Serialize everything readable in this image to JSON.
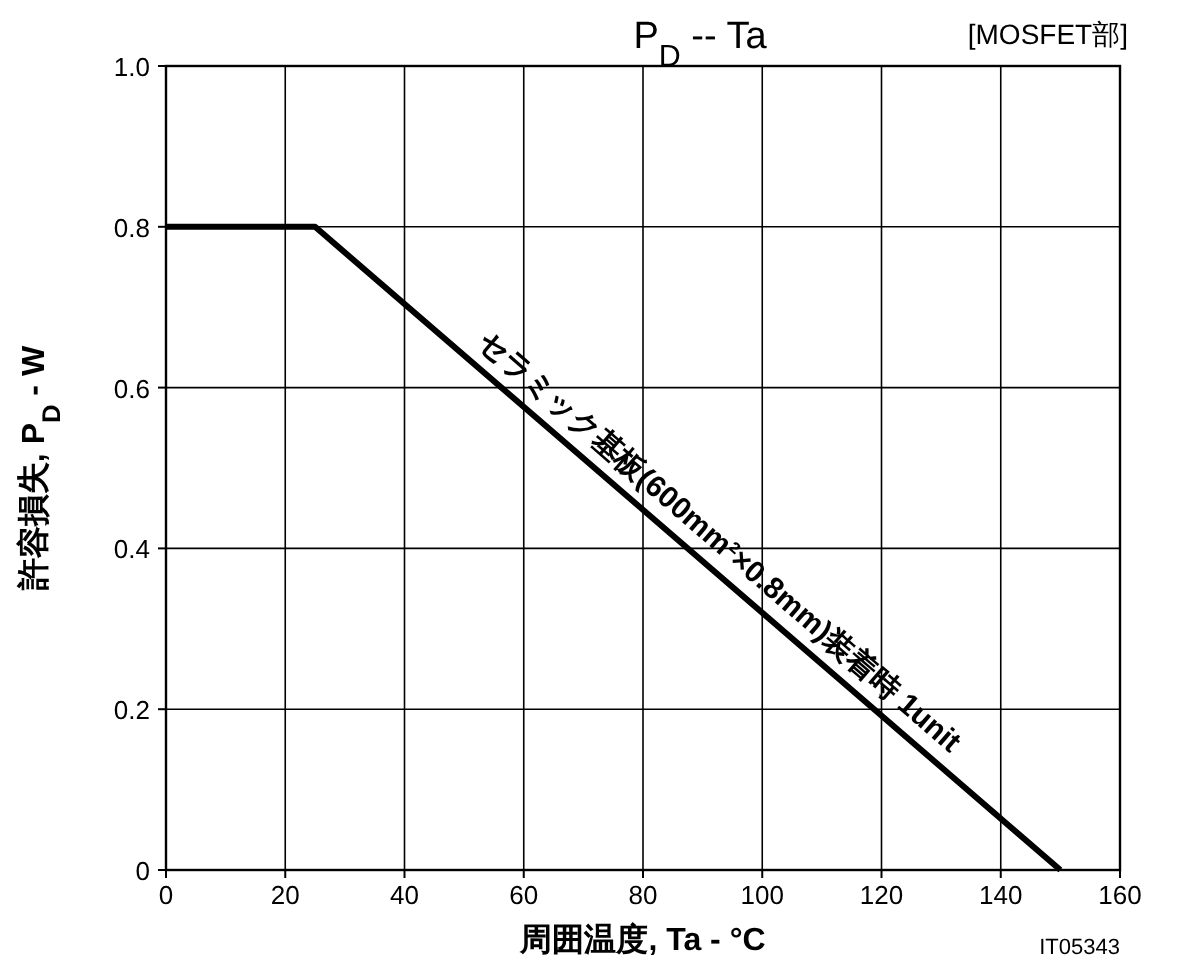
{
  "chart_data": {
    "type": "line",
    "title": "P$_{D}$ -- Ta",
    "subtitle": "[MOSFET部]",
    "xlabel": "周囲温度, Ta - °C",
    "ylabel": "許容損失, P$_{D}$ - W",
    "x": [
      0,
      25,
      150
    ],
    "series": [
      {
        "color": "#000000",
        "values": [
          0.8,
          0.8,
          0
        ]
      }
    ],
    "xlim": [
      0,
      160
    ],
    "xticks": [
      0,
      20,
      40,
      60,
      80,
      100,
      120,
      140,
      160
    ],
    "ylim": [
      0,
      1.0
    ],
    "yticks": [
      0,
      0.2,
      0.4,
      0.6,
      0.8,
      {
        "value": 1.0,
        "label": "1.0"
      }
    ],
    "grid": true,
    "annotations": [
      {
        "text": "セラミック基板(600mm²×0.8mm)装着時 1unit",
        "x": 90,
        "y": 0.384
      },
      "IT05343"
    ]
  }
}
